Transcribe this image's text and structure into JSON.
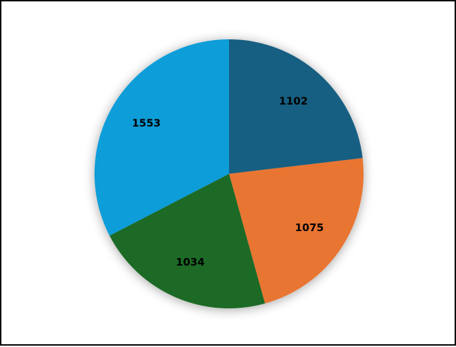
{
  "chart_data": {
    "type": "pie",
    "title": "",
    "start": "12 o'clock",
    "direction": "clockwise",
    "values": [
      1102,
      1075,
      1034,
      1553
    ],
    "labels": [
      "1102",
      "1075",
      "1034",
      "1553"
    ],
    "colors": [
      "#175e82",
      "#e97433",
      "#1c6b25",
      "#119dd8"
    ],
    "legend": "none"
  }
}
